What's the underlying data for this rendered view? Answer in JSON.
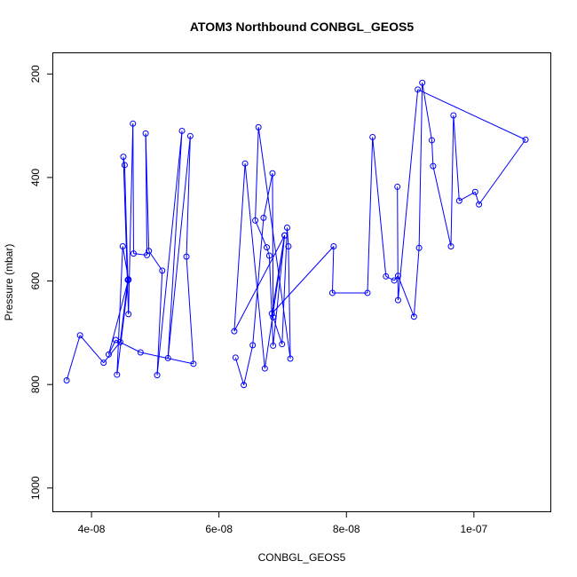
{
  "chart_data": {
    "type": "line",
    "title": "ATOM3 Northbound CONBGL_GEOS5",
    "xlabel": "CONBGL_GEOS5",
    "ylabel": "Pressure (mbar)",
    "xlim": [
      3.4e-08,
      1.12e-07
    ],
    "ylim": [
      1045,
      160
    ],
    "y_axis_reversed": true,
    "x_ticks": [
      {
        "value": 4e-08,
        "label": "4e-08"
      },
      {
        "value": 6e-08,
        "label": "6e-08"
      },
      {
        "value": 8e-08,
        "label": "8e-08"
      },
      {
        "value": 1e-07,
        "label": "1e-07"
      }
    ],
    "y_ticks": [
      {
        "value": 200,
        "label": "200"
      },
      {
        "value": 400,
        "label": "400"
      },
      {
        "value": 600,
        "label": "600"
      },
      {
        "value": 800,
        "label": "800"
      },
      {
        "value": 1000,
        "label": "1000"
      }
    ],
    "series_color": "#0000ff",
    "marker": "open-circle",
    "grid": false,
    "series": [
      {
        "x": [
          3.61e-08,
          3.82e-08,
          4.19e-08,
          4.45e-08,
          4.57e-08,
          4.52e-08,
          4.5e-08,
          4.58e-08,
          4.65e-08,
          4.66e-08,
          4.87e-08,
          4.85e-08,
          4.9e-08,
          5.11e-08,
          5.03e-08,
          5.42e-08,
          5.2e-08,
          5.55e-08,
          5.49e-08,
          5.6e-08,
          4.77e-08,
          4.38e-08,
          4.27e-08,
          4.58e-08,
          4.49e-08,
          4.4e-08,
          4.58e-08
        ],
        "y": [
          792,
          705,
          758,
          718,
          598,
          376,
          360,
          664,
          296,
          547,
          550,
          315,
          542,
          580,
          782,
          310,
          749,
          320,
          553,
          760,
          738,
          714,
          742,
          597,
          533,
          781,
          598
        ]
      },
      {
        "x": [
          6.26e-08,
          6.39e-08,
          6.53e-08,
          6.7e-08,
          6.84e-08,
          6.85e-08,
          6.99e-08,
          7.07e-08,
          7.09e-08,
          7.12e-08,
          6.62e-08,
          6.57e-08,
          6.75e-08,
          6.79e-08,
          6.85e-08,
          7.03e-08,
          6.24e-08,
          6.41e-08,
          6.72e-08,
          7.03e-08,
          6.83e-08,
          7.8e-08,
          7.78e-08,
          8.33e-08,
          8.41e-08,
          8.62e-08,
          8.75e-08,
          8.81e-08,
          9.06e-08,
          9.14e-08,
          9.19e-08,
          9.34e-08,
          9.36e-08,
          9.64e-08,
          9.68e-08,
          9.77e-08,
          1.002e-07,
          1.008e-07,
          1.081e-07,
          9.12e-08,
          8.81e-08,
          8.8e-08
        ],
        "y": [
          748,
          801,
          724,
          478,
          392,
          670,
          722,
          497,
          533,
          750,
          303,
          483,
          535,
          551,
          725,
          512,
          697,
          373,
          769,
          512,
          663,
          533,
          623,
          623,
          322,
          591,
          599,
          590,
          669,
          536,
          217,
          328,
          378,
          533,
          280,
          445,
          428,
          452,
          327,
          230,
          637,
          418
        ]
      }
    ]
  }
}
